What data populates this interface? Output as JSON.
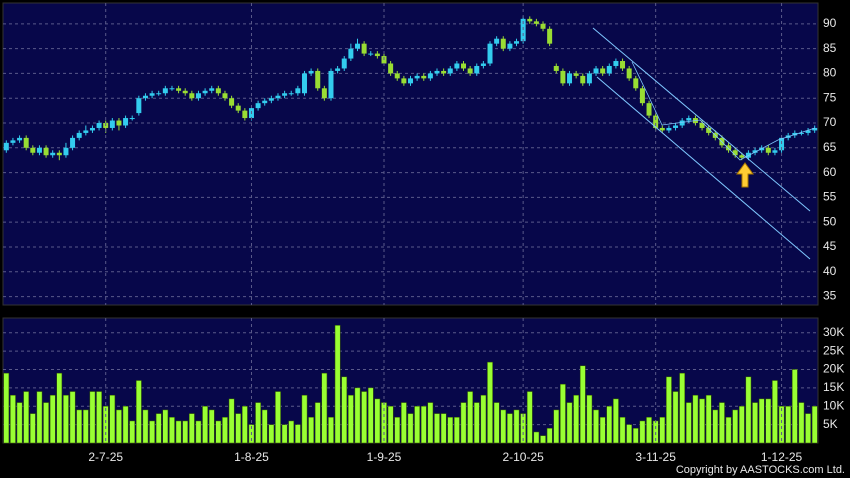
{
  "chart_data": [
    {
      "type": "candlestick",
      "up_color": "#33ccee",
      "down_color": "#99dd33",
      "ylim": [
        33.3,
        94.2
      ],
      "yticks": [
        35,
        40,
        45,
        50,
        55,
        60,
        65,
        70,
        75,
        80,
        85,
        90
      ],
      "grid": true,
      "open": [
        64.5,
        66,
        66.5,
        67,
        65,
        64,
        65,
        63.5,
        64,
        63.5,
        65,
        67,
        68,
        68.5,
        69,
        70,
        69,
        70.5,
        69.5,
        71,
        72,
        75,
        75.5,
        76,
        76,
        77,
        77,
        76.5,
        76,
        75,
        76,
        76.5,
        77,
        76,
        75,
        73.5,
        72.5,
        71,
        73,
        74,
        74.5,
        75,
        75.5,
        76,
        76,
        76,
        80,
        80.5,
        77,
        75,
        80.5,
        81,
        83,
        85,
        86,
        84,
        84,
        83.5,
        82,
        80,
        79,
        78,
        79,
        79.5,
        79,
        80,
        80.5,
        80,
        81,
        82,
        81,
        80,
        81.5,
        82,
        86,
        87,
        85,
        86,
        86.5,
        91,
        90.5,
        90,
        89,
        81.5,
        80.5,
        78,
        80,
        79.5,
        78,
        80,
        81,
        80,
        81.5,
        82.5,
        81,
        79,
        77,
        74,
        71.5,
        69,
        68.5,
        69,
        69.5,
        70.5,
        71,
        70,
        69,
        68,
        67,
        65.5,
        64.5,
        63.5,
        63,
        64,
        64.5,
        65,
        64,
        64.5,
        67,
        67.5,
        68,
        68,
        68.5
      ],
      "high": [
        66.5,
        67,
        67.5,
        67.5,
        65.5,
        65.5,
        65.5,
        64.5,
        64.5,
        66,
        67.5,
        68.5,
        69.5,
        69.5,
        70.5,
        70.5,
        71,
        71,
        71.5,
        71.5,
        75.5,
        76,
        76.5,
        76.5,
        77.5,
        77.5,
        77.5,
        77,
        76.5,
        76.5,
        77,
        77.5,
        77.5,
        76.5,
        75.5,
        74,
        73,
        73.5,
        74.5,
        75,
        75.5,
        76,
        76.5,
        76.5,
        77.5,
        80.5,
        81,
        81,
        77.5,
        81,
        81.5,
        83.5,
        86,
        87,
        86.5,
        84.5,
        84.5,
        84,
        82.5,
        80.5,
        79.5,
        79.5,
        80,
        80,
        80.5,
        81,
        81,
        81.5,
        82.5,
        82.5,
        81.5,
        82,
        82.5,
        86.5,
        87.5,
        87.5,
        86.5,
        87,
        91.5,
        91.5,
        91,
        90.5,
        89.5,
        82,
        81,
        80.5,
        80.5,
        80,
        80.5,
        81.5,
        81.5,
        82,
        83,
        83,
        81.5,
        79.5,
        77.5,
        74.5,
        72,
        69.5,
        69.5,
        70,
        71,
        71.5,
        71.5,
        70.5,
        69.5,
        68.5,
        67.5,
        66,
        65,
        64,
        64.5,
        65,
        65.5,
        65.5,
        65,
        67.5,
        68,
        68.5,
        68.5,
        69,
        69.5
      ],
      "low": [
        64,
        65.5,
        66,
        64.5,
        63.5,
        63.5,
        63,
        63,
        62.5,
        63,
        64.5,
        66.5,
        67.5,
        68,
        68.5,
        68,
        68.5,
        68.5,
        69,
        70.5,
        71.5,
        74.5,
        75,
        75.5,
        75.5,
        76.5,
        76,
        75.5,
        74.5,
        74.5,
        75.5,
        76,
        75.5,
        74.5,
        73,
        72,
        70.5,
        70.5,
        72.5,
        73.5,
        74,
        74.5,
        75,
        75.5,
        75.5,
        75.5,
        79.5,
        76.5,
        74.5,
        74.5,
        80,
        80.5,
        82.5,
        84.5,
        83.5,
        83.5,
        83,
        81.5,
        79.5,
        78.5,
        77.5,
        77.5,
        78.5,
        78.5,
        78.5,
        79.5,
        79.5,
        79.5,
        80.5,
        80.5,
        79.5,
        79.5,
        81,
        81.5,
        85.5,
        84.5,
        84.5,
        85.5,
        86,
        90,
        89.5,
        88.5,
        85.5,
        80,
        77.5,
        77.5,
        79,
        77.5,
        77.5,
        79.5,
        79.5,
        79.5,
        81,
        80.5,
        78.5,
        76.5,
        73.5,
        71,
        68.5,
        68,
        68,
        68.5,
        69,
        70,
        69.5,
        68.5,
        67.5,
        66.5,
        65,
        64,
        63,
        62.5,
        62.5,
        63.5,
        64,
        63.5,
        63.5,
        64,
        66.5,
        67,
        67.5,
        67.5,
        68
      ],
      "close": [
        66,
        66.5,
        67,
        65,
        64,
        65,
        63.5,
        64,
        63.5,
        65,
        67,
        68,
        68.5,
        69,
        70,
        69,
        70.5,
        69.5,
        71,
        71,
        75,
        75.5,
        76,
        76,
        77,
        77,
        76.5,
        76,
        75,
        76,
        76.5,
        77,
        76,
        75,
        73.5,
        72.5,
        71,
        73,
        74,
        74.5,
        75,
        75.5,
        76,
        76,
        77,
        80,
        80.5,
        77,
        75,
        80.5,
        81,
        83,
        85,
        86,
        84,
        84,
        83.5,
        82,
        80,
        79,
        78,
        79,
        79.5,
        79,
        80,
        80.5,
        80,
        81,
        82,
        81,
        80,
        81.5,
        82,
        86,
        87,
        85,
        86,
        86.5,
        91,
        90.5,
        90,
        89,
        86,
        80.5,
        78,
        80,
        79.5,
        78,
        80,
        81,
        80,
        81.5,
        82.5,
        81,
        79,
        77,
        74,
        71.5,
        69,
        68.5,
        69,
        69.5,
        70.5,
        71,
        70,
        69,
        68,
        67,
        65.5,
        64.5,
        63.5,
        63,
        64,
        64.5,
        65,
        64,
        64.5,
        67,
        67.5,
        68,
        68,
        68.5,
        69
      ]
    },
    {
      "type": "bar",
      "color": "#99ff33",
      "ylim": [
        0,
        34000
      ],
      "yticks": [
        {
          "value": 5000,
          "label": "5K"
        },
        {
          "value": 10000,
          "label": "10K"
        },
        {
          "value": 15000,
          "label": "15K"
        },
        {
          "value": 20000,
          "label": "20K"
        },
        {
          "value": 25000,
          "label": "25K"
        },
        {
          "value": 30000,
          "label": "30K"
        }
      ],
      "grid": true,
      "categories": [
        null,
        null,
        null,
        null,
        null,
        null,
        null,
        null,
        null,
        null,
        null,
        null,
        null,
        null,
        null,
        "2-7-25",
        null,
        null,
        null,
        null,
        null,
        null,
        null,
        null,
        null,
        null,
        null,
        null,
        null,
        null,
        null,
        null,
        null,
        null,
        null,
        null,
        null,
        "1-8-25",
        null,
        null,
        null,
        null,
        null,
        null,
        null,
        null,
        null,
        null,
        null,
        null,
        null,
        null,
        null,
        null,
        null,
        null,
        null,
        "1-9-25",
        null,
        null,
        null,
        null,
        null,
        null,
        null,
        null,
        null,
        null,
        null,
        null,
        null,
        null,
        null,
        null,
        null,
        null,
        null,
        null,
        "2-10-25",
        null,
        null,
        null,
        null,
        null,
        null,
        null,
        null,
        null,
        null,
        null,
        null,
        null,
        null,
        null,
        null,
        null,
        null,
        null,
        "3-11-25",
        null,
        null,
        null,
        null,
        null,
        null,
        null,
        null,
        null,
        null,
        null,
        null,
        null,
        null,
        null,
        null,
        null,
        null,
        "1-12-25",
        null,
        null,
        null,
        null,
        null
      ],
      "values": [
        19000,
        13000,
        11000,
        14000,
        8000,
        14000,
        11000,
        13000,
        19000,
        13000,
        14000,
        9000,
        9000,
        14000,
        14000,
        10000,
        13000,
        9000,
        10000,
        6000,
        17000,
        9000,
        6000,
        8000,
        9000,
        7000,
        6000,
        6000,
        8000,
        6000,
        10000,
        9000,
        6000,
        7000,
        12000,
        8000,
        10000,
        5000,
        11000,
        9000,
        5000,
        14000,
        5000,
        6000,
        5000,
        13000,
        7000,
        11000,
        19000,
        7000,
        32000,
        18000,
        13000,
        15000,
        14000,
        15000,
        12000,
        11000,
        10000,
        7000,
        11000,
        8000,
        10000,
        10000,
        11000,
        8000,
        8000,
        7000,
        7000,
        11000,
        14000,
        11000,
        13000,
        22000,
        11000,
        9000,
        8000,
        9000,
        8000,
        14000,
        3000,
        2000,
        4000,
        9000,
        16000,
        11000,
        13000,
        21000,
        13000,
        9000,
        7000,
        10000,
        12000,
        7000,
        5000,
        4000,
        6000,
        7000,
        6000,
        7000,
        18000,
        14000,
        19000,
        11000,
        13000,
        12000,
        13000,
        9000,
        11000,
        7000,
        9000,
        10000,
        18000,
        11000,
        12000,
        12000,
        17000,
        10000,
        10000,
        20000,
        11000,
        8000,
        10000
      ]
    }
  ],
  "copyright": "Copyright by AASTOCKS.com Ltd."
}
